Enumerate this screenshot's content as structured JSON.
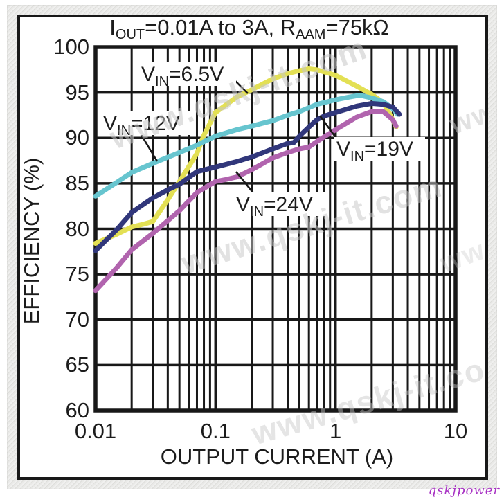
{
  "signature": "qskjpower",
  "watermark_text": "www.qskj-it.com",
  "chart_data": {
    "type": "line",
    "title_plain": "IOUT=0.01A to 3A, RAAM=75kΩ",
    "title_parts": {
      "p1": "I",
      "sub1": "OUT",
      "p2": "=0.01A to 3A, R",
      "sub2": "AAM",
      "p3": "=75kΩ"
    },
    "xlabel": "OUTPUT CURRENT (A)",
    "ylabel": "EFFICIENCY (%)",
    "x_scale": "log",
    "xlim": [
      0.01,
      10
    ],
    "ylim": [
      60,
      100
    ],
    "x_tick_values": [
      0.01,
      0.1,
      1,
      10
    ],
    "x_tick_labels": [
      "0.01",
      "0.1",
      "1",
      "10"
    ],
    "y_tick_values": [
      100,
      95,
      90,
      85,
      80,
      75,
      70,
      65,
      60
    ],
    "grid": {
      "horizontal_step_pct": 5,
      "vertical": "log decades with minor lines 2-9",
      "style": "full black grid"
    },
    "legend_position": "inline-curve-labels",
    "series": [
      {
        "name": "VIN=6.5V",
        "label_parts": {
          "p": "V",
          "sub": "IN",
          "v": "=6.5V"
        },
        "color": "#e3e054",
        "points": [
          [
            0.01,
            78.4
          ],
          [
            0.015,
            79.4
          ],
          [
            0.02,
            80.2
          ],
          [
            0.025,
            80.5
          ],
          [
            0.03,
            80.8
          ],
          [
            0.04,
            83.2
          ],
          [
            0.05,
            85.2
          ],
          [
            0.07,
            88.3
          ],
          [
            0.08,
            90.3
          ],
          [
            0.1,
            92.8
          ],
          [
            0.15,
            94.5
          ],
          [
            0.2,
            95.3
          ],
          [
            0.3,
            96.5
          ],
          [
            0.4,
            97.1
          ],
          [
            0.5,
            97.4
          ],
          [
            0.6,
            97.6
          ],
          [
            0.7,
            97.5
          ],
          [
            1,
            96.9
          ],
          [
            1.5,
            95.7
          ],
          [
            2,
            94.8
          ],
          [
            2.5,
            93.9
          ],
          [
            3,
            92.0
          ],
          [
            3.2,
            91.2
          ]
        ]
      },
      {
        "name": "VIN=12V",
        "label_parts": {
          "p": "V",
          "sub": "IN",
          "v": "=12V"
        },
        "color": "#67c5cf",
        "points": [
          [
            0.01,
            83.6
          ],
          [
            0.015,
            85.1
          ],
          [
            0.02,
            86.2
          ],
          [
            0.03,
            87.2
          ],
          [
            0.05,
            88.4
          ],
          [
            0.07,
            89.2
          ],
          [
            0.1,
            90.2
          ],
          [
            0.15,
            90.9
          ],
          [
            0.2,
            91.3
          ],
          [
            0.3,
            91.9
          ],
          [
            0.4,
            92.5
          ],
          [
            0.5,
            92.9
          ],
          [
            0.7,
            93.7
          ],
          [
            1,
            94.2
          ],
          [
            1.3,
            94.5
          ],
          [
            1.6,
            94.7
          ],
          [
            2,
            94.4
          ],
          [
            2.5,
            94.0
          ],
          [
            3,
            93.2
          ],
          [
            3.3,
            92.6
          ]
        ]
      },
      {
        "name": "VIN=19V",
        "label_parts": {
          "p": "V",
          "sub": "IN",
          "v": "=19V"
        },
        "color": "#31377b",
        "points": [
          [
            0.01,
            77.6
          ],
          [
            0.015,
            79.9
          ],
          [
            0.02,
            81.8
          ],
          [
            0.03,
            83.4
          ],
          [
            0.04,
            84.3
          ],
          [
            0.05,
            84.9
          ],
          [
            0.07,
            86.3
          ],
          [
            0.1,
            86.8
          ],
          [
            0.15,
            87.4
          ],
          [
            0.2,
            87.9
          ],
          [
            0.3,
            88.8
          ],
          [
            0.4,
            89.4
          ],
          [
            0.45,
            89.5
          ],
          [
            0.5,
            90.2
          ],
          [
            0.6,
            91.2
          ],
          [
            0.7,
            92.0
          ],
          [
            0.8,
            92.4
          ],
          [
            1,
            92.8
          ],
          [
            1.5,
            93.5
          ],
          [
            2,
            93.8
          ],
          [
            2.5,
            93.7
          ],
          [
            3,
            93.4
          ],
          [
            3.4,
            92.6
          ]
        ]
      },
      {
        "name": "VIN=24V",
        "label_parts": {
          "p": "V",
          "sub": "IN",
          "v": "=24V"
        },
        "color": "#b164ae",
        "points": [
          [
            0.01,
            73.2
          ],
          [
            0.015,
            75.7
          ],
          [
            0.02,
            77.7
          ],
          [
            0.03,
            79.5
          ],
          [
            0.04,
            80.9
          ],
          [
            0.05,
            82.0
          ],
          [
            0.07,
            84.0
          ],
          [
            0.1,
            85.2
          ],
          [
            0.12,
            85.4
          ],
          [
            0.15,
            85.7
          ],
          [
            0.2,
            86.5
          ],
          [
            0.3,
            87.8
          ],
          [
            0.4,
            88.4
          ],
          [
            0.5,
            88.8
          ],
          [
            0.6,
            89.0
          ],
          [
            0.7,
            89.6
          ],
          [
            0.8,
            90.1
          ],
          [
            1,
            90.9
          ],
          [
            1.5,
            92.3
          ],
          [
            2,
            92.9
          ],
          [
            2.5,
            92.9
          ],
          [
            3,
            92.0
          ],
          [
            3.2,
            91.3
          ]
        ]
      }
    ]
  }
}
